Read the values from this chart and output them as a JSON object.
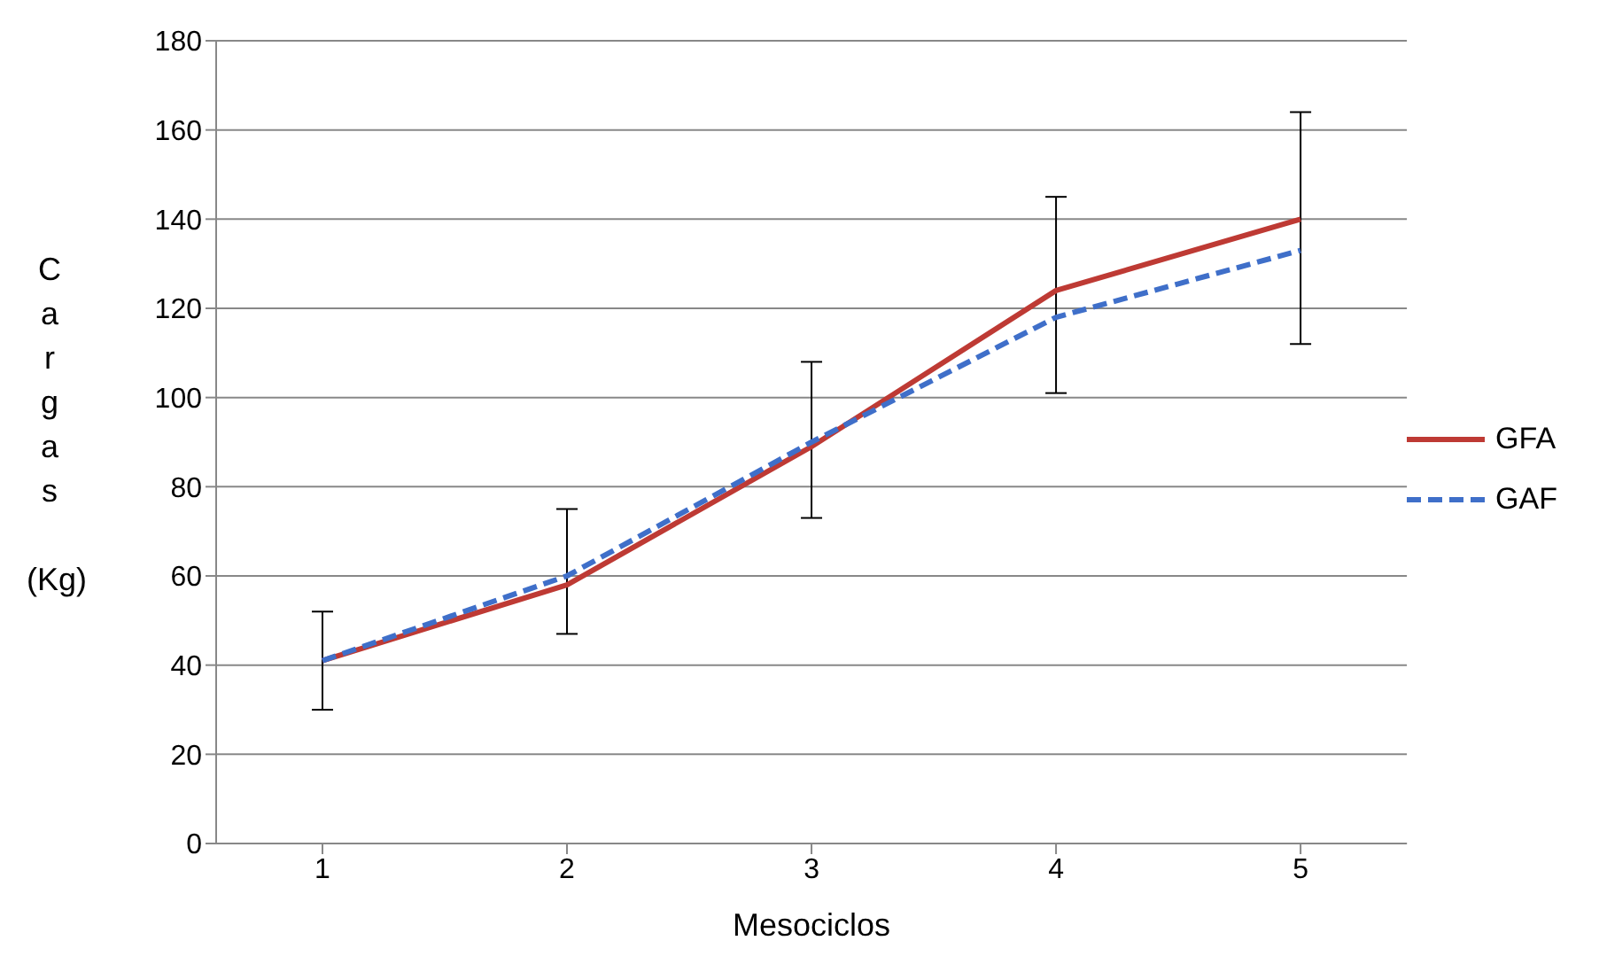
{
  "chart_data": {
    "type": "line",
    "xlabel": "Mesociclos",
    "ylabel": "Cargas (Kg)",
    "categories": [
      "1",
      "2",
      "3",
      "4",
      "5"
    ],
    "series": [
      {
        "name": "GFA",
        "color": "#be3a34",
        "line_style": "solid",
        "values": [
          41,
          58,
          89,
          124,
          140
        ],
        "errors": [
          [
            30,
            52
          ],
          [
            47,
            75
          ],
          [
            73,
            108
          ],
          [
            101,
            145
          ],
          [
            112,
            164
          ]
        ]
      },
      {
        "name": "GAF",
        "color": "#3f6fc9",
        "line_style": "dashed",
        "values": [
          41,
          60,
          90,
          118,
          133
        ]
      }
    ],
    "ylim": [
      0,
      180
    ],
    "yticks": [
      0,
      20,
      40,
      60,
      80,
      100,
      120,
      140,
      160,
      180
    ],
    "grid": "y",
    "legend": "right",
    "marker": "none"
  }
}
